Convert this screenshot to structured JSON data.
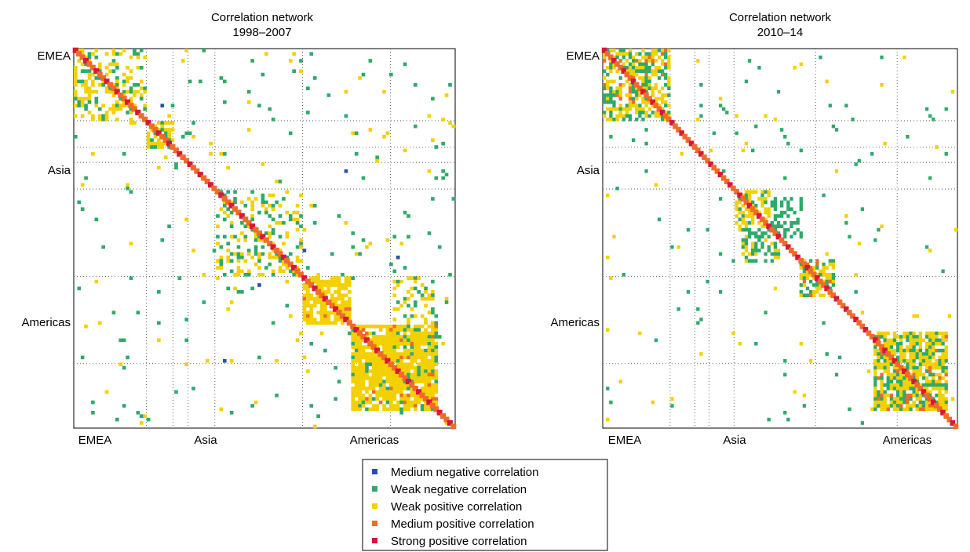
{
  "chart_data": [
    {
      "type": "heatmap",
      "title": "Correlation network",
      "subtitle": "1998–2007",
      "x_tick_labels": [
        "EMEA",
        "Asia",
        "Americas"
      ],
      "y_tick_labels": [
        "EMEA",
        "Asia",
        "Americas"
      ],
      "grid": true,
      "grid_style": "dotted",
      "region_boundaries": [
        0,
        0.19,
        0.26,
        0.3,
        0.37,
        0.6,
        0.83,
        1.0
      ],
      "blocks": [
        {
          "rows": [
            0,
            0.19
          ],
          "cols": [
            0,
            0.19
          ],
          "mix": {
            "weak_positive": 0.3,
            "weak_negative": 0.12
          }
        },
        {
          "rows": [
            0.19,
            0.26
          ],
          "cols": [
            0.19,
            0.26
          ],
          "mix": {
            "weak_positive": 0.45,
            "weak_negative": 0.25
          }
        },
        {
          "rows": [
            0.37,
            0.6
          ],
          "cols": [
            0.37,
            0.6
          ],
          "mix": {
            "weak_positive": 0.14,
            "weak_negative": 0.12
          }
        },
        {
          "rows": [
            0.6,
            0.72
          ],
          "cols": [
            0.6,
            0.72
          ],
          "mix": {
            "weak_positive": 0.7,
            "medium_positive": 0.05
          }
        },
        {
          "rows": [
            0.72,
            0.95
          ],
          "cols": [
            0.72,
            0.95
          ],
          "mix": {
            "weak_positive": 0.75,
            "weak_negative": 0.08,
            "medium_positive": 0.04
          }
        },
        {
          "rows": [
            0.6,
            0.72
          ],
          "cols": [
            0.83,
            0.95
          ],
          "mix": {
            "weak_positive": 0.2,
            "weak_negative": 0.1
          }
        }
      ],
      "background_density": {
        "weak_positive": 0.008,
        "weak_negative": 0.012,
        "medium_negative": 0.0005
      }
    },
    {
      "type": "heatmap",
      "title": "Correlation network",
      "subtitle": "2010–14",
      "x_tick_labels": [
        "EMEA",
        "Asia",
        "Americas"
      ],
      "y_tick_labels": [
        "EMEA",
        "Asia",
        "Americas"
      ],
      "grid": true,
      "grid_style": "dotted",
      "region_boundaries": [
        0,
        0.19,
        0.26,
        0.3,
        0.37,
        0.6,
        0.83,
        1.0
      ],
      "blocks": [
        {
          "rows": [
            0,
            0.19
          ],
          "cols": [
            0,
            0.19
          ],
          "mix": {
            "weak_positive": 0.35,
            "weak_negative": 0.2,
            "medium_positive": 0.04
          }
        },
        {
          "rows": [
            0.37,
            0.47
          ],
          "cols": [
            0.37,
            0.47
          ],
          "mix": {
            "weak_positive": 0.45,
            "weak_negative": 0.1
          }
        },
        {
          "rows": [
            0.39,
            0.5
          ],
          "cols": [
            0.44,
            0.56
          ],
          "mix": {
            "weak_negative": 0.4
          }
        },
        {
          "rows": [
            0.44,
            0.56
          ],
          "cols": [
            0.39,
            0.5
          ],
          "mix": {
            "weak_negative": 0.4,
            "weak_positive": 0.15
          }
        },
        {
          "rows": [
            0.55,
            0.65
          ],
          "cols": [
            0.55,
            0.65
          ],
          "mix": {
            "weak_positive": 0.4,
            "weak_negative": 0.2,
            "medium_positive": 0.05
          }
        },
        {
          "rows": [
            0.74,
            0.95
          ],
          "cols": [
            0.76,
            0.97
          ],
          "mix": {
            "weak_positive": 0.5,
            "weak_negative": 0.25,
            "medium_positive": 0.06
          }
        }
      ],
      "background_density": {
        "weak_positive": 0.006,
        "weak_negative": 0.01,
        "medium_negative": 0.0
      }
    }
  ],
  "legend": {
    "items": [
      {
        "label": "Medium negative correlation",
        "color": "#2a52a8"
      },
      {
        "label": "Weak negative correlation",
        "color": "#2daa6a"
      },
      {
        "label": "Weak positive correlation",
        "color": "#f4d000"
      },
      {
        "label": "Medium positive correlation",
        "color": "#f06a2a"
      },
      {
        "label": "Strong positive correlation",
        "color": "#d9173b"
      }
    ]
  },
  "colors": {
    "medium_negative": "#2a52a8",
    "weak_negative": "#2daa6a",
    "weak_positive": "#f4d000",
    "medium_positive": "#f06a2a",
    "strong_positive": "#d9173b"
  }
}
